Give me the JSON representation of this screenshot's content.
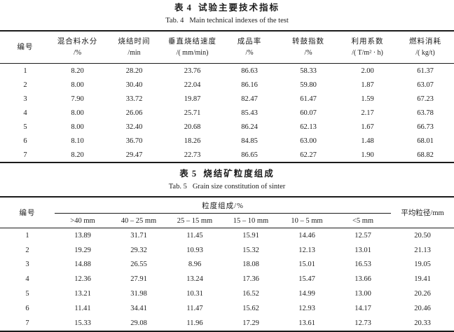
{
  "tables": {
    "table4": {
      "title_cn_label": "表 4",
      "title_cn_text": "试验主要技术指标",
      "title_en_label": "Tab. 4",
      "title_en_text": "Main technical indexes of the test",
      "columns": [
        {
          "name": "编号",
          "unit": ""
        },
        {
          "name": "混合料水分",
          "unit": "/%"
        },
        {
          "name": "烧结时间",
          "unit": "/min"
        },
        {
          "name": "垂直烧结速度",
          "unit": "/( mm/min)"
        },
        {
          "name": "成品率",
          "unit": "/%"
        },
        {
          "name": "转鼓指数",
          "unit": "/%"
        },
        {
          "name": "利用系数",
          "unit": "/( T/m² · h)"
        },
        {
          "name": "燃料消耗",
          "unit": "/( kg/t)"
        }
      ],
      "rows": [
        [
          "1",
          "8.20",
          "28.20",
          "23.76",
          "86.63",
          "58.33",
          "2.00",
          "61.37"
        ],
        [
          "2",
          "8.00",
          "30.40",
          "22.04",
          "86.16",
          "59.80",
          "1.87",
          "63.07"
        ],
        [
          "3",
          "7.90",
          "33.72",
          "19.87",
          "82.47",
          "61.47",
          "1.59",
          "67.23"
        ],
        [
          "4",
          "8.00",
          "26.06",
          "25.71",
          "85.43",
          "60.07",
          "2.17",
          "63.78"
        ],
        [
          "5",
          "8.00",
          "32.40",
          "20.68",
          "86.24",
          "62.13",
          "1.67",
          "66.73"
        ],
        [
          "6",
          "8.10",
          "36.70",
          "18.26",
          "84.85",
          "63.00",
          "1.48",
          "68.01"
        ],
        [
          "7",
          "8.20",
          "29.47",
          "22.73",
          "86.65",
          "62.27",
          "1.90",
          "68.82"
        ]
      ]
    },
    "table5": {
      "title_cn_label": "表 5",
      "title_cn_text": "烧结矿粒度组成",
      "title_en_label": "Tab. 5",
      "title_en_text": "Grain size constitution of sinter",
      "id_header": "编号",
      "group_header": "粒度组成/%",
      "size_headers": [
        ">40 mm",
        "40 – 25 mm",
        "25 – 15 mm",
        "15 – 10 mm",
        "10 – 5 mm",
        "<5 mm"
      ],
      "avg_header": "平均粒径/mm",
      "rows": [
        [
          "1",
          "13.89",
          "31.71",
          "11.45",
          "15.91",
          "14.46",
          "12.57",
          "20.50"
        ],
        [
          "2",
          "19.29",
          "29.32",
          "10.93",
          "15.32",
          "12.13",
          "13.01",
          "21.13"
        ],
        [
          "3",
          "14.88",
          "26.55",
          "8.96",
          "18.08",
          "15.01",
          "16.53",
          "19.05"
        ],
        [
          "4",
          "12.36",
          "27.91",
          "13.24",
          "17.36",
          "15.47",
          "13.66",
          "19.41"
        ],
        [
          "5",
          "13.21",
          "31.98",
          "10.31",
          "16.52",
          "14.99",
          "13.00",
          "20.26"
        ],
        [
          "6",
          "11.41",
          "34.41",
          "11.47",
          "15.62",
          "12.93",
          "14.17",
          "20.46"
        ],
        [
          "7",
          "15.33",
          "29.08",
          "11.96",
          "17.29",
          "13.61",
          "12.73",
          "20.33"
        ]
      ]
    }
  }
}
